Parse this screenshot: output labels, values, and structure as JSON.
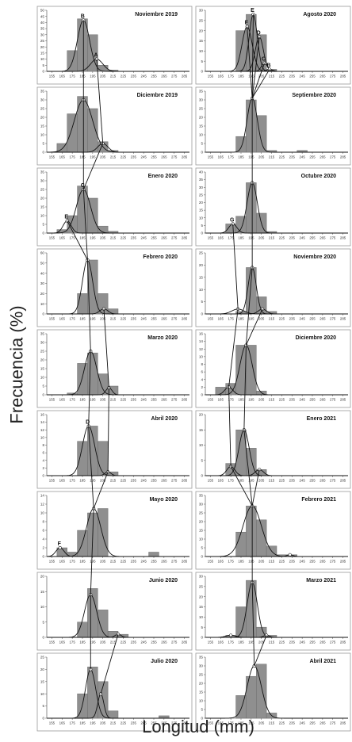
{
  "figure": {
    "ylabel": "Frecuencia (%)",
    "xlabel": "Longitud (mm)",
    "xticks": [
      "155",
      "165",
      "175",
      "185",
      "195",
      "205",
      "215",
      "225",
      "235",
      "245",
      "255",
      "265",
      "275",
      "285"
    ],
    "xrange": [
      150,
      290
    ],
    "bar_color": "#8f8f8f",
    "curve_color": "#111111"
  },
  "chart_data": [
    {
      "type": "bar",
      "title": "Noviembre 2019",
      "ylim": [
        0,
        50
      ],
      "yticks": [
        0,
        5,
        10,
        15,
        20,
        25,
        30,
        35,
        40,
        45,
        50
      ],
      "bins": [
        170,
        180,
        190,
        200,
        210
      ],
      "values": [
        17,
        43,
        30,
        5,
        1
      ],
      "components": [
        {
          "mu": 186,
          "sigma": 6,
          "peak": 42,
          "label": "B"
        },
        {
          "mu": 199,
          "sigma": 6,
          "peak": 10,
          "label": "A"
        }
      ]
    },
    {
      "type": "bar",
      "title": "Agosto 2020",
      "ylim": [
        0,
        30
      ],
      "yticks": [
        0,
        5,
        10,
        15,
        20,
        25,
        30
      ],
      "bins": [
        180,
        190,
        200,
        210
      ],
      "values": [
        20,
        28,
        18,
        1
      ],
      "components": [
        {
          "mu": 191,
          "sigma": 5,
          "peak": 22,
          "label": "F"
        },
        {
          "mu": 197,
          "sigma": 4,
          "peak": 28,
          "label": "E"
        },
        {
          "mu": 203,
          "sigma": 4,
          "peak": 17,
          "label": "D"
        },
        {
          "mu": 208,
          "sigma": 3,
          "peak": 4,
          "label": "C"
        },
        {
          "mu": 213,
          "sigma": 3,
          "peak": 1,
          "label": "B"
        }
      ]
    },
    {
      "type": "bar",
      "title": "Diciembre 2019",
      "ylim": [
        0,
        35
      ],
      "yticks": [
        0,
        5,
        10,
        15,
        20,
        25,
        30,
        35
      ],
      "bins": [
        160,
        170,
        180,
        190,
        200,
        210
      ],
      "values": [
        5,
        22,
        32,
        25,
        6,
        1
      ],
      "components": [
        {
          "mu": 186,
          "sigma": 9,
          "peak": 30
        },
        {
          "mu": 205,
          "sigma": 5,
          "peak": 5
        }
      ]
    },
    {
      "type": "bar",
      "title": "Septiembre 2020",
      "ylim": [
        0,
        35
      ],
      "yticks": [
        0,
        5,
        10,
        15,
        20,
        25,
        30,
        35
      ],
      "bins": [
        180,
        190,
        200,
        210,
        240
      ],
      "values": [
        9,
        30,
        21,
        1,
        1
      ],
      "components": [
        {
          "mu": 196,
          "sigma": 5,
          "peak": 31
        }
      ]
    },
    {
      "type": "bar",
      "title": "Enero 2020",
      "ylim": [
        0,
        35
      ],
      "yticks": [
        0,
        5,
        10,
        15,
        20,
        25,
        30,
        35
      ],
      "bins": [
        160,
        170,
        180,
        190,
        200,
        210
      ],
      "values": [
        2,
        10,
        27,
        20,
        4,
        1
      ],
      "components": [
        {
          "mu": 170,
          "sigma": 4,
          "peak": 7,
          "label": "E"
        },
        {
          "mu": 186,
          "sigma": 7,
          "peak": 25,
          "label": "C"
        }
      ]
    },
    {
      "type": "bar",
      "title": "Octubre 2020",
      "ylim": [
        0,
        40
      ],
      "yticks": [
        0,
        5,
        10,
        15,
        20,
        25,
        30,
        35,
        40
      ],
      "bins": [
        170,
        180,
        190,
        200,
        210
      ],
      "values": [
        6,
        11,
        33,
        13,
        1
      ],
      "components": [
        {
          "mu": 177,
          "sigma": 4,
          "peak": 6,
          "label": "G"
        },
        {
          "mu": 196,
          "sigma": 5,
          "peak": 33
        }
      ]
    },
    {
      "type": "bar",
      "title": "Febrero 2020",
      "ylim": [
        0,
        60
      ],
      "yticks": [
        0,
        10,
        20,
        30,
        40,
        50,
        60
      ],
      "bins": [
        180,
        190,
        200,
        210
      ],
      "values": [
        20,
        53,
        20,
        5
      ],
      "components": [
        {
          "mu": 190,
          "sigma": 5,
          "peak": 53
        },
        {
          "mu": 206,
          "sigma": 4,
          "peak": 5
        }
      ]
    },
    {
      "type": "bar",
      "title": "Noviembre 2020",
      "ylim": [
        0,
        25
      ],
      "yticks": [
        0,
        5,
        10,
        15,
        20,
        25
      ],
      "bins": [
        180,
        190,
        200,
        210
      ],
      "values": [
        1,
        19,
        7,
        1
      ],
      "components": [
        {
          "mu": 182,
          "sigma": 6,
          "peak": 2
        },
        {
          "mu": 196,
          "sigma": 4,
          "peak": 19
        },
        {
          "mu": 206,
          "sigma": 4,
          "peak": 2
        }
      ]
    },
    {
      "type": "bar",
      "title": "Marzo 2020",
      "ylim": [
        0,
        35
      ],
      "yticks": [
        0,
        5,
        10,
        15,
        20,
        25,
        30,
        35
      ],
      "bins": [
        170,
        180,
        190,
        200,
        210
      ],
      "values": [
        1,
        18,
        24,
        12,
        5
      ],
      "components": [
        {
          "mu": 193,
          "sigma": 6,
          "peak": 25
        },
        {
          "mu": 211,
          "sigma": 3,
          "peak": 4
        }
      ]
    },
    {
      "type": "bar",
      "title": "Diciembre 2020",
      "ylim": [
        0,
        16
      ],
      "yticks": [
        0,
        2,
        4,
        6,
        8,
        10,
        12,
        14,
        16
      ],
      "bins": [
        160,
        170,
        180,
        190,
        200
      ],
      "values": [
        2,
        3,
        13,
        13,
        1
      ],
      "components": [
        {
          "mu": 173,
          "sigma": 4,
          "peak": 2
        },
        {
          "mu": 190,
          "sigma": 6,
          "peak": 13
        }
      ]
    },
    {
      "type": "bar",
      "title": "Abril 2020",
      "ylim": [
        0,
        16
      ],
      "yticks": [
        0,
        2,
        4,
        6,
        8,
        10,
        12,
        14,
        16
      ],
      "bins": [
        180,
        190,
        200,
        210
      ],
      "values": [
        9,
        13,
        9,
        1
      ],
      "components": [
        {
          "mu": 191,
          "sigma": 6,
          "peak": 13,
          "label": "D"
        },
        {
          "mu": 210,
          "sigma": 3,
          "peak": 1
        }
      ]
    },
    {
      "type": "bar",
      "title": "Enero 2021",
      "ylim": [
        0,
        20
      ],
      "yticks": [
        0,
        5,
        10,
        15,
        20
      ],
      "bins": [
        170,
        180,
        190,
        200
      ],
      "values": [
        4,
        15,
        9,
        2
      ],
      "components": [
        {
          "mu": 175,
          "sigma": 4,
          "peak": 3
        },
        {
          "mu": 188,
          "sigma": 5,
          "peak": 15
        },
        {
          "mu": 203,
          "sigma": 4,
          "peak": 2
        }
      ]
    },
    {
      "type": "bar",
      "title": "Mayo 2020",
      "ylim": [
        0,
        14
      ],
      "yticks": [
        0,
        2,
        4,
        6,
        8,
        10,
        12,
        14
      ],
      "bins": [
        160,
        170,
        180,
        190,
        200,
        250
      ],
      "values": [
        2,
        1,
        6,
        10,
        11,
        1
      ],
      "components": [
        {
          "mu": 163,
          "sigma": 4,
          "peak": 2,
          "label": "F"
        },
        {
          "mu": 196,
          "sigma": 7,
          "peak": 11
        }
      ]
    },
    {
      "type": "bar",
      "title": "Febrero 2021",
      "ylim": [
        0,
        35
      ],
      "yticks": [
        0,
        5,
        10,
        15,
        20,
        25,
        30,
        35
      ],
      "bins": [
        180,
        190,
        200,
        210,
        220,
        230
      ],
      "values": [
        14,
        29,
        21,
        6,
        1,
        1
      ],
      "components": [
        {
          "mu": 196,
          "sigma": 9,
          "peak": 29
        },
        {
          "mu": 233,
          "sigma": 3,
          "peak": 1
        }
      ]
    },
    {
      "type": "bar",
      "title": "Junio 2020",
      "ylim": [
        0,
        20
      ],
      "yticks": [
        0,
        5,
        10,
        15,
        20
      ],
      "bins": [
        180,
        190,
        200,
        210,
        220
      ],
      "values": [
        5,
        16,
        9,
        2,
        1
      ],
      "components": [
        {
          "mu": 193,
          "sigma": 6,
          "peak": 14
        },
        {
          "mu": 220,
          "sigma": 3,
          "peak": 1
        }
      ]
    },
    {
      "type": "bar",
      "title": "Marzo 2021",
      "ylim": [
        0,
        30
      ],
      "yticks": [
        0,
        5,
        10,
        15,
        20,
        25,
        30
      ],
      "bins": [
        170,
        180,
        190,
        200,
        210
      ],
      "values": [
        1,
        15,
        28,
        5,
        1
      ],
      "components": [
        {
          "mu": 175,
          "sigma": 5,
          "peak": 1
        },
        {
          "mu": 196,
          "sigma": 5,
          "peak": 27
        },
        {
          "mu": 210,
          "sigma": 3,
          "peak": 1
        }
      ]
    },
    {
      "type": "bar",
      "title": "Julio 2020",
      "ylim": [
        0,
        25
      ],
      "yticks": [
        0,
        5,
        10,
        15,
        20,
        25
      ],
      "bins": [
        180,
        190,
        200,
        210,
        260
      ],
      "values": [
        10,
        21,
        15,
        3,
        1
      ],
      "components": [
        {
          "mu": 193,
          "sigma": 5,
          "peak": 20
        },
        {
          "mu": 203,
          "sigma": 3,
          "peak": 10
        }
      ]
    },
    {
      "type": "bar",
      "title": "Abril 2021",
      "ylim": [
        0,
        35
      ],
      "yticks": [
        0,
        5,
        10,
        15,
        20,
        25,
        30,
        35
      ],
      "bins": [
        180,
        190,
        200,
        210
      ],
      "values": [
        13,
        24,
        31,
        3
      ],
      "components": [
        {
          "mu": 198,
          "sigma": 7,
          "peak": 30
        }
      ]
    }
  ]
}
